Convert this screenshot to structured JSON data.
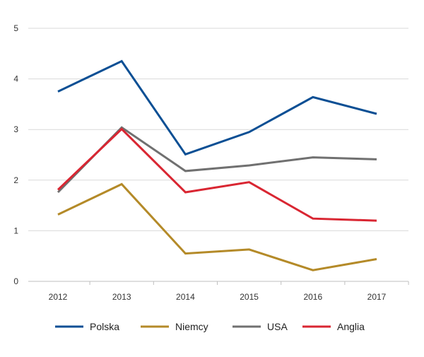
{
  "chart_data": {
    "type": "line",
    "title": "",
    "xlabel": "",
    "ylabel": "",
    "categories": [
      "2012",
      "2013",
      "2014",
      "2015",
      "2016",
      "2017"
    ],
    "ylim": [
      0,
      5
    ],
    "yticks": [
      "0",
      "1",
      "2",
      "3",
      "4",
      "5"
    ],
    "grid": "horizontal",
    "legend_position": "bottom",
    "series": [
      {
        "name": "Polska",
        "color": "#0b4f94",
        "values": [
          3.75,
          4.35,
          2.51,
          2.95,
          3.64,
          3.31
        ]
      },
      {
        "name": "Niemcy",
        "color": "#b48a28",
        "values": [
          1.32,
          1.92,
          0.55,
          0.63,
          0.22,
          0.44
        ]
      },
      {
        "name": "USA",
        "color": "#707070",
        "values": [
          1.76,
          3.04,
          2.18,
          2.29,
          2.45,
          2.41
        ]
      },
      {
        "name": "Anglia",
        "color": "#d92632",
        "values": [
          1.81,
          3.01,
          1.76,
          1.96,
          1.24,
          1.2
        ]
      }
    ],
    "gridline_color": "#d9d9d9",
    "axis_color": "#bfbfbf"
  }
}
